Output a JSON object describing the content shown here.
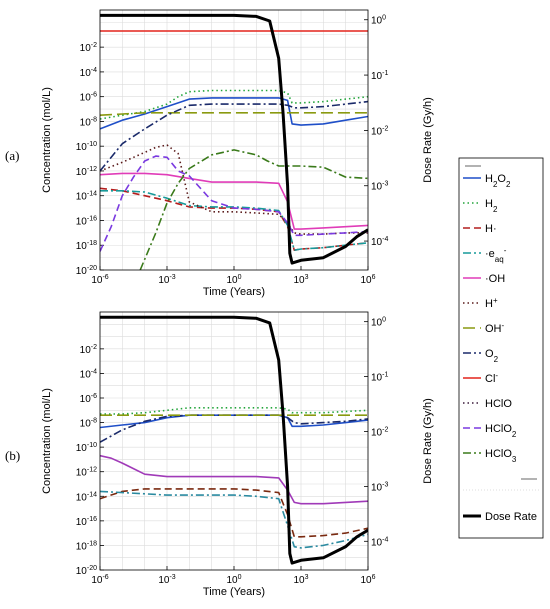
{
  "chart_data": [
    {
      "type": "line",
      "panel_label": "(a)",
      "xlabel": "Time (Years)",
      "ylabel": "Concentration (mol/L)",
      "ylabel_right": "Dose Rate (Gy/h)",
      "xscale": "log",
      "yscale": "log",
      "xlim": [
        1e-06,
        1000000.0
      ],
      "ylim": [
        1e-20,
        10.0
      ],
      "ylim_right": [
        3e-05,
        1.5
      ],
      "x_ticks": [
        "10^-6",
        "10^-3",
        "10^0",
        "10^3",
        "10^6"
      ],
      "y_ticks": [
        "10^-20",
        "10^-18",
        "10^-16",
        "10^-14",
        "10^-12",
        "10^-10",
        "10^-8",
        "10^-6",
        "10^-4",
        "10^-2"
      ],
      "y_ticks_right": [
        "10^-4",
        "10^-3",
        "10^-2",
        "10^-1",
        "10^0"
      ],
      "grid": true,
      "series": [
        {
          "name": "H2O2",
          "axis": "left",
          "color": "#1f4fc8",
          "dash": "solid",
          "x": [
            -6,
            -5,
            -4,
            -3,
            -2,
            -1,
            0,
            1,
            2,
            2.4,
            2.6,
            3,
            4,
            5,
            6
          ],
          "y": [
            -8.6,
            -7.9,
            -7.4,
            -6.8,
            -6.2,
            -6.1,
            -6.1,
            -6.1,
            -6.1,
            -6.3,
            -8.2,
            -8.3,
            -8.2,
            -7.9,
            -7.6
          ]
        },
        {
          "name": "H2",
          "axis": "left",
          "color": "#22a43a",
          "dash": "dots",
          "x": [
            -6,
            -5,
            -4,
            -3,
            -2.5,
            -2,
            -1,
            0,
            1,
            2,
            2.4,
            2.6,
            3,
            4,
            5,
            6
          ],
          "y": [
            -7.8,
            -7.5,
            -7.2,
            -6.6,
            -6.0,
            -5.6,
            -5.5,
            -5.5,
            -5.5,
            -5.5,
            -5.7,
            -6.5,
            -6.5,
            -6.4,
            -6.2,
            -6.0
          ]
        },
        {
          "name": "H·",
          "axis": "left",
          "color": "#b41e1e",
          "dash": "dash",
          "x": [
            -6,
            -5,
            -4,
            -3,
            -2,
            -1,
            0,
            1,
            2,
            2.4,
            2.7,
            3,
            4,
            5,
            6
          ],
          "y": [
            -13.4,
            -13.6,
            -14.0,
            -14.4,
            -14.9,
            -15.0,
            -15.0,
            -15.1,
            -15.3,
            -16.5,
            -18.4,
            -18.3,
            -18.2,
            -18.0,
            -17.8
          ]
        },
        {
          "name": "·e_aq⁻",
          "axis": "left",
          "color": "#179a9a",
          "dash": "dashdot",
          "x": [
            -6,
            -5,
            -4,
            -3,
            -2,
            -1,
            0,
            1,
            2,
            2.4,
            2.7,
            3,
            4,
            5,
            6
          ],
          "y": [
            -13.6,
            -13.6,
            -13.7,
            -14.2,
            -14.8,
            -14.9,
            -14.9,
            -15.0,
            -15.2,
            -16.4,
            -18.4,
            -18.3,
            -18.2,
            -18.0,
            -17.8
          ]
        },
        {
          "name": "·OH",
          "axis": "left",
          "color": "#e03cb8",
          "dash": "solid",
          "x": [
            -6,
            -5,
            -4,
            -3,
            -2,
            -1,
            0,
            1,
            2,
            2.4,
            2.7,
            3,
            4,
            5,
            6
          ],
          "y": [
            -12.3,
            -12.2,
            -12.2,
            -12.3,
            -12.6,
            -12.9,
            -12.9,
            -12.9,
            -13.0,
            -14.5,
            -16.7,
            -16.7,
            -16.6,
            -16.5,
            -16.4
          ]
        },
        {
          "name": "H+",
          "axis": "left",
          "color": "#5a1a1a",
          "dash": "dots",
          "x": [
            -6,
            -5,
            -4,
            -3.5,
            -3,
            -2.5,
            -2,
            -1,
            0,
            1,
            2,
            2.4,
            2.7,
            3,
            4,
            5,
            6
          ],
          "y": [
            -12.0,
            -11.3,
            -10.5,
            -10.1,
            -9.9,
            -10.6,
            -14.5,
            -15.3,
            -15.3,
            -15.4,
            -15.5,
            -16.2,
            -17.0,
            -17.1,
            -17.1,
            -17.0,
            -17.0
          ]
        },
        {
          "name": "OH-",
          "axis": "left",
          "color": "#8a9a10",
          "dash": "longdash",
          "x": [
            -6,
            -5,
            -4,
            -3,
            -2,
            -1,
            0,
            1,
            2,
            3,
            4,
            5,
            6
          ],
          "y": [
            -7.5,
            -7.4,
            -7.3,
            -7.3,
            -7.3,
            -7.3,
            -7.3,
            -7.3,
            -7.3,
            -7.3,
            -7.3,
            -7.3,
            -7.3
          ]
        },
        {
          "name": "O2",
          "axis": "left",
          "color": "#1a2a6a",
          "dash": "dashdot",
          "x": [
            -6,
            -5,
            -4,
            -3,
            -2,
            -1,
            0,
            1,
            2,
            2.4,
            2.7,
            3,
            4,
            5,
            6
          ],
          "y": [
            -12.0,
            -9.8,
            -8.6,
            -7.5,
            -6.7,
            -6.6,
            -6.6,
            -6.6,
            -6.6,
            -6.7,
            -6.9,
            -6.9,
            -6.8,
            -6.6,
            -6.4
          ]
        },
        {
          "name": "Cl-",
          "axis": "left",
          "color": "#e4241c",
          "dash": "solid",
          "x": [
            -6,
            6
          ],
          "y": [
            -0.7,
            -0.7
          ]
        },
        {
          "name": "HClO",
          "axis": "left",
          "color": "#3a1a3a",
          "dash": "dots",
          "x": [
            -6,
            6
          ],
          "y": [
            null,
            null
          ]
        },
        {
          "name": "HClO2",
          "axis": "left",
          "color": "#7a3ae0",
          "dash": "dash",
          "x": [
            -6,
            -5.5,
            -5,
            -4.5,
            -4,
            -3.5,
            -3,
            -2.5,
            -2,
            -1,
            0,
            1,
            2,
            2.4,
            2.7,
            3,
            4,
            5,
            6
          ],
          "y": [
            -18.5,
            -16.5,
            -14.0,
            -12.5,
            -11.2,
            -10.8,
            -10.9,
            -12.0,
            -12.4,
            -14.4,
            -15.0,
            -15.1,
            -15.3,
            -16.2,
            -17.2,
            -17.2,
            -17.1,
            -17.0,
            -16.9
          ]
        },
        {
          "name": "HClO3",
          "axis": "left",
          "color": "#3a7a1a",
          "dash": "dashdot",
          "x": [
            -4.2,
            -3.5,
            -3,
            -2.5,
            -2,
            -1,
            0,
            1,
            1.5,
            2,
            3,
            4,
            5,
            6
          ],
          "y": [
            -20.0,
            -17.0,
            -14.6,
            -13.0,
            -11.8,
            -10.7,
            -10.3,
            -10.7,
            -11.2,
            -11.6,
            -11.6,
            -11.7,
            -12.5,
            -12.6
          ]
        },
        {
          "name": "Dose Rate",
          "axis": "right",
          "color": "#000000",
          "dash": "thick",
          "x": [
            -6,
            -5,
            -4,
            -3,
            -2,
            -1,
            0,
            1,
            1.6,
            2,
            2.2,
            2.4,
            2.5,
            2.6,
            3,
            4,
            5,
            5.5,
            6
          ],
          "y": [
            1.2,
            1.2,
            1.2,
            1.2,
            1.2,
            1.2,
            1.2,
            1.15,
            0.95,
            0.2,
            0.02,
            0.001,
            6e-05,
            4e-05,
            4.5e-05,
            5e-05,
            8e-05,
            0.00012,
            0.00016
          ]
        }
      ]
    },
    {
      "type": "line",
      "panel_label": "(b)",
      "xlabel": "Time (Years)",
      "ylabel": "Concentration (mol/L)",
      "ylabel_right": "Dose Rate (Gy/h)",
      "xscale": "log",
      "yscale": "log",
      "xlim": [
        1e-06,
        1000000.0
      ],
      "ylim": [
        1e-20,
        10.0
      ],
      "ylim_right": [
        3e-05,
        1.5
      ],
      "x_ticks": [
        "10^-6",
        "10^-3",
        "10^0",
        "10^3",
        "10^6"
      ],
      "y_ticks": [
        "10^-20",
        "10^-18",
        "10^-16",
        "10^-14",
        "10^-12",
        "10^-10",
        "10^-8",
        "10^-6",
        "10^-4",
        "10^-2"
      ],
      "y_ticks_right": [
        "10^-4",
        "10^-3",
        "10^-2",
        "10^-1",
        "10^0"
      ],
      "grid": true,
      "series": [
        {
          "name": "H2O2",
          "axis": "left",
          "color": "#1f4fc8",
          "dash": "solid",
          "x": [
            -6,
            -5,
            -4,
            -3,
            -2,
            -1,
            0,
            1,
            2,
            2.4,
            2.6,
            3,
            4,
            5,
            6
          ],
          "y": [
            -8.4,
            -8.2,
            -8.0,
            -7.6,
            -7.4,
            -7.4,
            -7.4,
            -7.4,
            -7.4,
            -7.6,
            -8.3,
            -8.3,
            -8.2,
            -8.0,
            -7.8
          ]
        },
        {
          "name": "H2",
          "axis": "left",
          "color": "#22a43a",
          "dash": "dots",
          "x": [
            -6,
            -5,
            -4,
            -3,
            -2,
            -1,
            0,
            1,
            2,
            2.4,
            2.6,
            3,
            4,
            5,
            6
          ],
          "y": [
            -7.3,
            -7.3,
            -7.2,
            -7.0,
            -6.8,
            -6.8,
            -6.8,
            -6.8,
            -6.8,
            -6.9,
            -7.2,
            -7.2,
            -7.2,
            -7.1,
            -7.0
          ]
        },
        {
          "name": "H·",
          "axis": "left",
          "color": "#7a2a10",
          "dash": "dash",
          "x": [
            -6,
            -5,
            -4,
            -3,
            -2,
            -1,
            0,
            1,
            2,
            2.4,
            2.7,
            3,
            4,
            5,
            6
          ],
          "y": [
            -14.2,
            -13.6,
            -13.4,
            -13.4,
            -13.4,
            -13.4,
            -13.4,
            -13.5,
            -13.7,
            -15.5,
            -17.3,
            -17.3,
            -17.2,
            -17.0,
            -16.6
          ]
        },
        {
          "name": "·e_aq⁻",
          "axis": "left",
          "color": "#2a8aa0",
          "dash": "dashdot",
          "x": [
            -6,
            -5,
            -4,
            -3,
            -2,
            -1,
            0,
            1,
            2,
            2.4,
            2.7,
            3,
            4,
            5,
            6
          ],
          "y": [
            -13.6,
            -13.7,
            -13.8,
            -13.9,
            -13.9,
            -13.9,
            -13.9,
            -14.0,
            -14.2,
            -16.4,
            -18.1,
            -18.2,
            -18.0,
            -17.6,
            -17.1
          ]
        },
        {
          "name": "·OH",
          "axis": "left",
          "color": "#a03ab8",
          "dash": "solid",
          "x": [
            -6,
            -5.5,
            -5,
            -4,
            -3,
            -2,
            -1,
            0,
            1,
            2,
            2.4,
            2.7,
            3,
            4,
            5,
            6
          ],
          "y": [
            -10.7,
            -10.9,
            -11.3,
            -12.2,
            -12.4,
            -12.4,
            -12.4,
            -12.4,
            -12.4,
            -12.5,
            -13.5,
            -14.5,
            -14.6,
            -14.6,
            -14.5,
            -14.4
          ]
        },
        {
          "name": "O2",
          "axis": "left",
          "color": "#1a2a6a",
          "dash": "dashdot",
          "x": [
            -6,
            -5,
            -4,
            -3,
            -2,
            -1,
            0,
            1,
            2,
            2.4,
            2.7,
            3,
            4,
            5,
            6
          ],
          "y": [
            -9.6,
            -8.6,
            -7.9,
            -7.5,
            -7.4,
            -7.4,
            -7.4,
            -7.4,
            -7.4,
            -7.6,
            -8.0,
            -8.1,
            -8.0,
            -7.9,
            -7.7
          ]
        },
        {
          "name": "OH-",
          "axis": "left",
          "color": "#8a9a10",
          "dash": "longdash",
          "x": [
            -6,
            -5,
            -4,
            -3,
            -2,
            -1,
            0,
            1,
            2,
            3,
            4,
            5,
            6
          ],
          "y": [
            -7.4,
            -7.4,
            -7.4,
            -7.4,
            -7.4,
            -7.4,
            -7.4,
            -7.4,
            -7.4,
            -7.4,
            -7.4,
            -7.4,
            -7.4
          ]
        },
        {
          "name": "Dose Rate",
          "axis": "right",
          "color": "#000000",
          "dash": "thick",
          "x": [
            -6,
            -5,
            -4,
            -3,
            -2,
            -1,
            0,
            1,
            1.6,
            2,
            2.2,
            2.4,
            2.5,
            2.6,
            3,
            4,
            5,
            5.5,
            6
          ],
          "y": [
            1.2,
            1.2,
            1.2,
            1.2,
            1.2,
            1.2,
            1.2,
            1.15,
            0.95,
            0.2,
            0.02,
            0.001,
            6e-05,
            4e-05,
            4.5e-05,
            5e-05,
            8e-05,
            0.00012,
            0.00016
          ]
        }
      ]
    }
  ],
  "legend": {
    "placement": "right",
    "entries": [
      {
        "key": "H2O2",
        "color": "#1f4fc8",
        "dash": "solid"
      },
      {
        "key": "H2",
        "color": "#22a43a",
        "dash": "dots"
      },
      {
        "key": "H·",
        "color": "#b41e1e",
        "dash": "dash"
      },
      {
        "key": "·e_aq⁻",
        "color": "#179a9a",
        "dash": "dashdot"
      },
      {
        "key": "·OH",
        "color": "#e03cb8",
        "dash": "solid"
      },
      {
        "key": "H+",
        "color": "#5a1a1a",
        "dash": "dots"
      },
      {
        "key": "OH-",
        "color": "#8a9a10",
        "dash": "longdash"
      },
      {
        "key": "O2",
        "color": "#1a2a6a",
        "dash": "dashdot"
      },
      {
        "key": "Cl-",
        "color": "#e4241c",
        "dash": "solid"
      },
      {
        "key": "HClO",
        "color": "#3a1a3a",
        "dash": "dots"
      },
      {
        "key": "HClO2",
        "color": "#7a3ae0",
        "dash": "dash"
      },
      {
        "key": "HClO3",
        "color": "#3a7a1a",
        "dash": "dashdot"
      },
      {
        "key": "Dose Rate",
        "color": "#000000",
        "dash": "thick"
      }
    ]
  }
}
